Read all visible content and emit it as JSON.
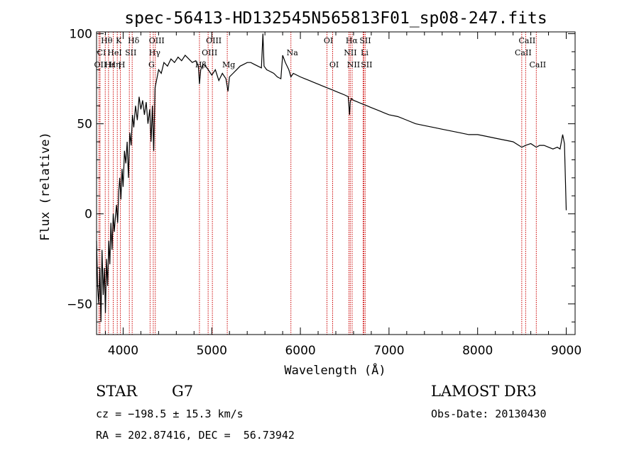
{
  "chart_data": {
    "type": "line",
    "title": "spec-56413-HD132545N565813F01_sp08-247.fits",
    "xlabel": "Wavelength (Å)",
    "ylabel": "Flux (relative)",
    "xlim": [
      3700,
      9100
    ],
    "ylim": [
      -67,
      101
    ],
    "xticks": [
      4000,
      5000,
      6000,
      7000,
      8000,
      9000
    ],
    "xtick_labels": [
      "4000",
      "5000",
      "6000",
      "7000",
      "8000",
      "9000"
    ],
    "yticks": [
      -50,
      0,
      50,
      100
    ],
    "ytick_labels": [
      "−50",
      "0",
      "50",
      "100"
    ],
    "series": [
      {
        "name": "flux",
        "x": [
          3700,
          3712,
          3725,
          3738,
          3750,
          3762,
          3775,
          3788,
          3800,
          3812,
          3825,
          3838,
          3850,
          3862,
          3875,
          3888,
          3900,
          3912,
          3925,
          3938,
          3950,
          3962,
          3975,
          3988,
          4000,
          4015,
          4030,
          4045,
          4060,
          4075,
          4090,
          4105,
          4120,
          4140,
          4160,
          4180,
          4200,
          4220,
          4240,
          4260,
          4280,
          4300,
          4315,
          4330,
          4345,
          4360,
          4380,
          4400,
          4430,
          4460,
          4500,
          4540,
          4580,
          4620,
          4660,
          4700,
          4740,
          4780,
          4820,
          4850,
          4861,
          4875,
          4900,
          4930,
          4960,
          5000,
          5040,
          5080,
          5120,
          5160,
          5183,
          5200,
          5240,
          5280,
          5320,
          5360,
          5400,
          5440,
          5480,
          5520,
          5560,
          5577,
          5590,
          5620,
          5660,
          5700,
          5740,
          5780,
          5800,
          5830,
          5870,
          5893,
          5920,
          5960,
          6000,
          6050,
          6100,
          6150,
          6200,
          6250,
          6300,
          6350,
          6400,
          6450,
          6500,
          6540,
          6555,
          6563,
          6575,
          6600,
          6650,
          6700,
          6750,
          6800,
          6850,
          6900,
          6950,
          7000,
          7100,
          7200,
          7300,
          7400,
          7500,
          7600,
          7700,
          7800,
          7900,
          8000,
          8100,
          8200,
          8300,
          8400,
          8498,
          8542,
          8600,
          8662,
          8700,
          8750,
          8800,
          8850,
          8900,
          8930,
          8960,
          8980,
          9000
        ],
        "values": [
          -15,
          -40,
          -50,
          -30,
          -60,
          -20,
          -45,
          -30,
          -55,
          -25,
          -40,
          -15,
          -28,
          -5,
          -20,
          0,
          -10,
          -2,
          5,
          -5,
          12,
          20,
          8,
          25,
          15,
          35,
          28,
          40,
          20,
          45,
          38,
          55,
          48,
          60,
          52,
          65,
          58,
          63,
          55,
          62,
          50,
          58,
          40,
          60,
          35,
          70,
          75,
          80,
          78,
          84,
          82,
          86,
          84,
          87,
          85,
          88,
          86,
          84,
          85,
          82,
          72,
          80,
          83,
          82,
          80,
          77,
          80,
          74,
          78,
          75,
          68,
          76,
          78,
          80,
          82,
          83,
          84,
          84,
          83,
          82,
          81,
          100,
          82,
          80,
          79,
          78,
          76,
          75,
          88,
          84,
          80,
          76,
          78,
          77,
          76,
          75,
          74,
          73,
          72,
          71,
          70,
          69,
          68,
          67,
          66,
          65,
          55,
          62,
          64,
          63,
          62,
          61,
          60,
          59,
          58,
          57,
          56,
          55,
          54,
          52,
          50,
          49,
          48,
          47,
          46,
          45,
          44,
          44,
          43,
          42,
          41,
          40,
          37,
          38,
          39,
          37,
          38,
          38,
          37,
          36,
          37,
          36,
          44,
          39,
          2
        ]
      }
    ],
    "line_labels": [
      {
        "text": "Hθ",
        "wl": 3798,
        "row": 0
      },
      {
        "text": "CI",
        "wl": 3740,
        "row": 1
      },
      {
        "text": "OII",
        "wl": 3727,
        "row": 2
      },
      {
        "text": "Hε",
        "wl": 3835,
        "row": 2
      },
      {
        "text": "K",
        "wl": 3934,
        "row": 0
      },
      {
        "text": "HeI",
        "wl": 3888,
        "row": 1
      },
      {
        "text": "Hη",
        "wl": 3889,
        "row": 2
      },
      {
        "text": "H",
        "wl": 3969,
        "row": 2
      },
      {
        "text": "Hδ",
        "wl": 4102,
        "row": 0
      },
      {
        "text": "SII",
        "wl": 4070,
        "row": 1
      },
      {
        "text": "OIII",
        "wl": 4363,
        "row": 0
      },
      {
        "text": "Hγ",
        "wl": 4340,
        "row": 1
      },
      {
        "text": "G",
        "wl": 4304,
        "row": 2
      },
      {
        "text": "OIII",
        "wl": 5007,
        "row": 0
      },
      {
        "text": "OIII",
        "wl": 4959,
        "row": 1
      },
      {
        "text": "Hβ",
        "wl": 4861,
        "row": 2
      },
      {
        "text": "Mg",
        "wl": 5175,
        "row": 2
      },
      {
        "text": "Na",
        "wl": 5893,
        "row": 1
      },
      {
        "text": "OI",
        "wl": 6300,
        "row": 0
      },
      {
        "text": "OI",
        "wl": 6364,
        "row": 2
      },
      {
        "text": "Hα",
        "wl": 6563,
        "row": 0
      },
      {
        "text": "SII",
        "wl": 6716,
        "row": 0
      },
      {
        "text": "NII",
        "wl": 6548,
        "row": 1
      },
      {
        "text": "Li",
        "wl": 6708,
        "row": 1
      },
      {
        "text": "NII",
        "wl": 6584,
        "row": 2
      },
      {
        "text": "SII",
        "wl": 6731,
        "row": 2
      },
      {
        "text": "CaII",
        "wl": 8542,
        "row": 0
      },
      {
        "text": "CaII",
        "wl": 8498,
        "row": 1
      },
      {
        "text": "CaII",
        "wl": 8662,
        "row": 2
      }
    ],
    "line_positions": [
      3727,
      3740,
      3798,
      3835,
      3888,
      3934,
      3969,
      4070,
      4102,
      4304,
      4340,
      4363,
      4861,
      4959,
      5007,
      5175,
      5893,
      6300,
      6364,
      6548,
      6563,
      6584,
      6708,
      6716,
      6731,
      8498,
      8542,
      8662
    ],
    "colors": {
      "spectrum": "#000000",
      "lines": "#cc0000",
      "axes": "#000000"
    }
  },
  "info": {
    "object_class": "STAR",
    "subclass": "G7",
    "survey": "LAMOST DR3",
    "redshift": "cz = −198.5 ± 15.3 km/s",
    "obs_date": "Obs-Date: 20130430",
    "coords": "RA = 202.87416, DEC =  56.73942"
  }
}
